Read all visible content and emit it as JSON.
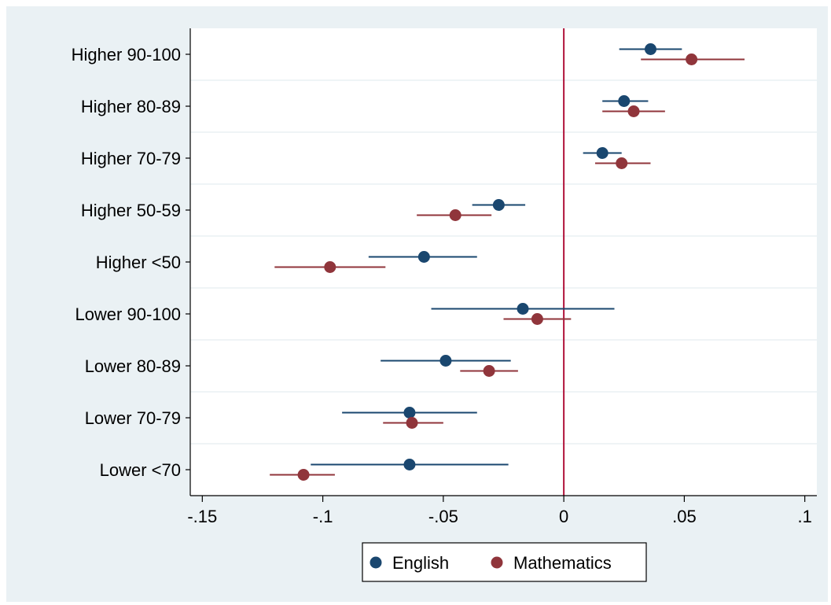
{
  "chart_data": {
    "type": "scatter",
    "subtype": "coefficient-plot",
    "categories": [
      "Higher 90-100",
      "Higher 80-89",
      "Higher 70-79",
      "Higher 50-59",
      "Higher <50",
      "Lower 90-100",
      "Lower 80-89",
      "Lower 70-79",
      "Lower <70"
    ],
    "xlim": [
      -0.155,
      0.105
    ],
    "xticks": [
      -0.15,
      -0.1,
      -0.05,
      0,
      0.05,
      0.1
    ],
    "xtick_labels": [
      "-.15",
      "-.1",
      "-.05",
      "0",
      ".05",
      ".1"
    ],
    "reference_line": {
      "x": 0,
      "color": "#b0123a"
    },
    "grid": "horizontal",
    "legend": {
      "position": "bottom",
      "entries": [
        "English",
        "Mathematics"
      ]
    },
    "series": [
      {
        "name": "English",
        "color": "#1a476f",
        "estimates": [
          0.036,
          0.025,
          0.016,
          -0.027,
          -0.058,
          -0.017,
          -0.049,
          -0.064,
          -0.064
        ],
        "ci_low": [
          0.023,
          0.016,
          0.008,
          -0.038,
          -0.081,
          -0.055,
          -0.076,
          -0.092,
          -0.105
        ],
        "ci_high": [
          0.049,
          0.035,
          0.024,
          -0.016,
          -0.036,
          0.021,
          -0.022,
          -0.036,
          -0.023
        ]
      },
      {
        "name": "Mathematics",
        "color": "#90353b",
        "estimates": [
          0.053,
          0.029,
          0.024,
          -0.045,
          -0.097,
          -0.011,
          -0.031,
          -0.063,
          -0.108
        ],
        "ci_low": [
          0.032,
          0.016,
          0.013,
          -0.061,
          -0.12,
          -0.025,
          -0.043,
          -0.075,
          -0.122
        ],
        "ci_high": [
          0.075,
          0.042,
          0.036,
          -0.03,
          -0.074,
          0.003,
          -0.019,
          -0.05,
          -0.095
        ]
      }
    ]
  }
}
